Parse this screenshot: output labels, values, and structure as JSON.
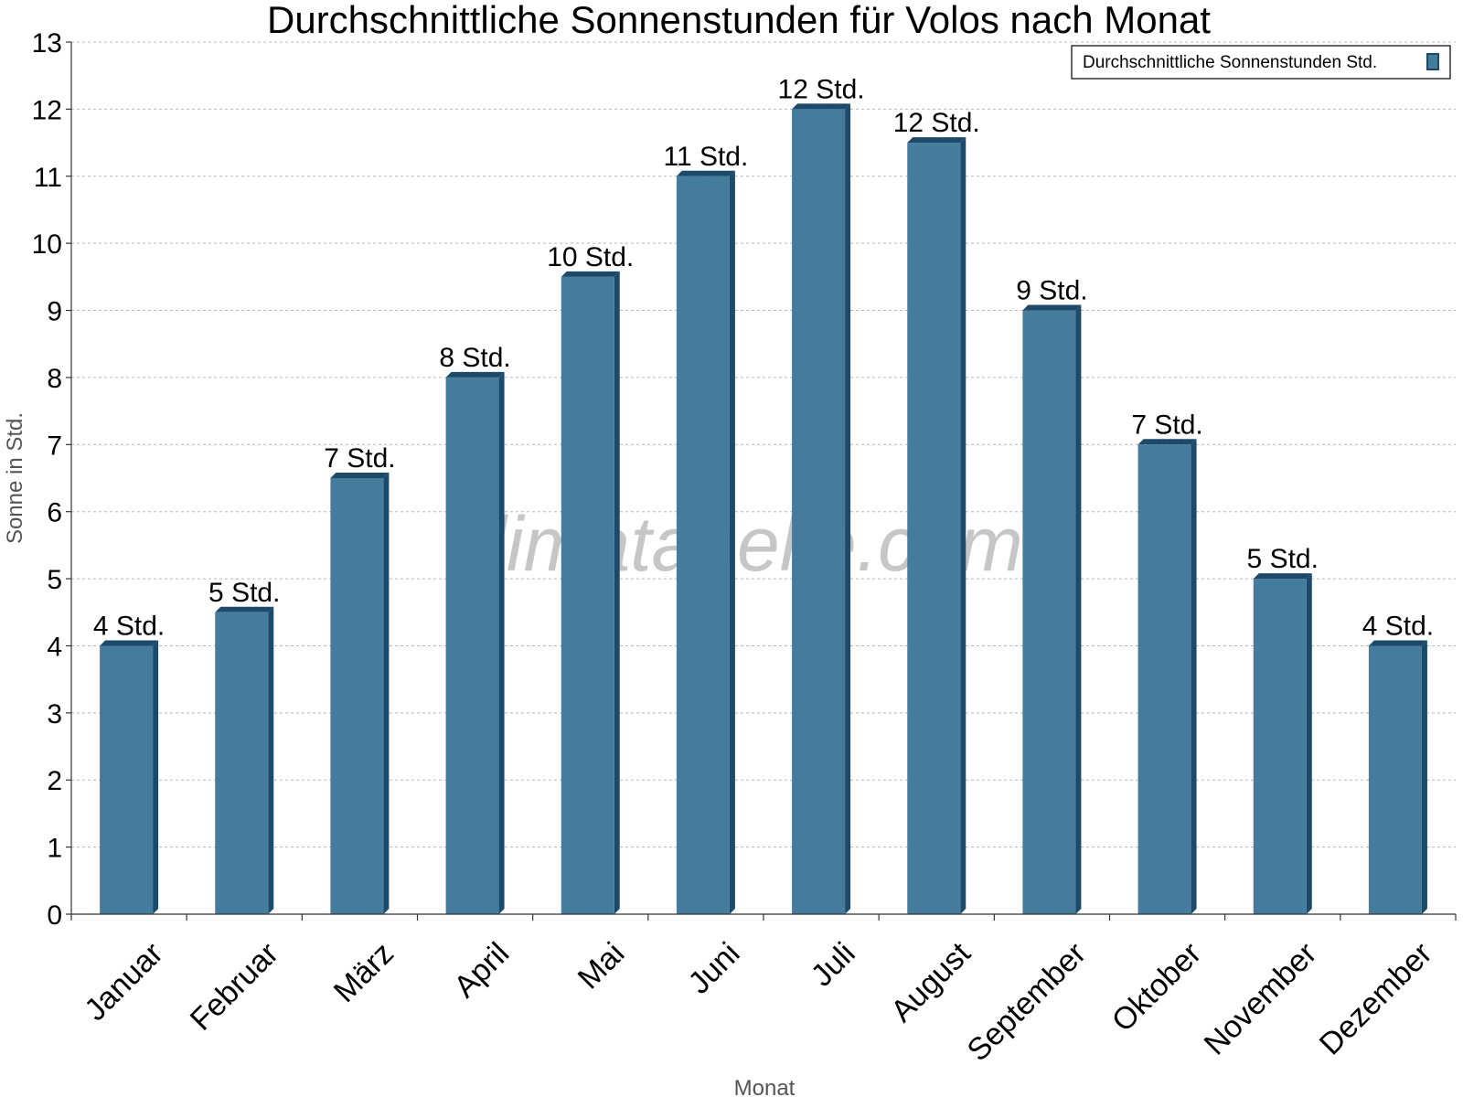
{
  "chart_data": {
    "type": "bar",
    "title": "Durchschnittliche Sonnenstunden für Volos nach Monat",
    "xlabel": "Monat",
    "ylabel": "Sonne in Std.",
    "ylim": [
      0,
      13
    ],
    "yticks": [
      0,
      1,
      2,
      3,
      4,
      5,
      6,
      7,
      8,
      9,
      10,
      11,
      12,
      13
    ],
    "grid": true,
    "legend_position": "top-right",
    "categories": [
      "Januar",
      "Februar",
      "März",
      "April",
      "Mai",
      "Juni",
      "Juli",
      "August",
      "September",
      "Oktober",
      "November",
      "Dezember"
    ],
    "series": [
      {
        "name": "Durchschnittliche Sonnenstunden Std.",
        "values": [
          4,
          4.5,
          6.5,
          8,
          9.5,
          11,
          12,
          11.5,
          9,
          7,
          5,
          4
        ],
        "labels": [
          "4 Std.",
          "5 Std.",
          "7 Std.",
          "8 Std.",
          "10 Std.",
          "11 Std.",
          "12 Std.",
          "12 Std.",
          "9 Std.",
          "7 Std.",
          "5 Std.",
          "4 Std."
        ],
        "color": "#457b9d",
        "edge_color": "#1d4a6b"
      }
    ],
    "watermark": "klimatabelle.com"
  }
}
